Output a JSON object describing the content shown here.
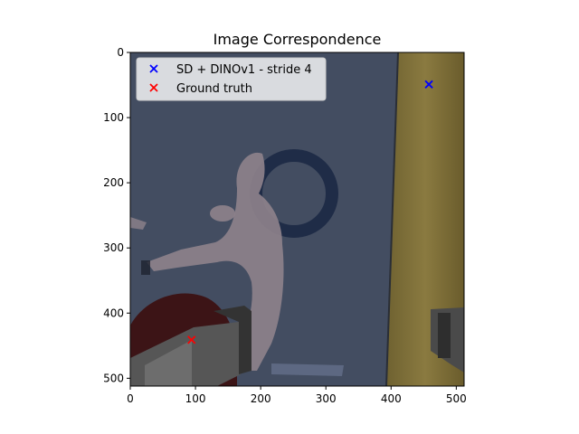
{
  "chart_data": {
    "type": "scatter",
    "title": "Image Correspondence",
    "xlabel": "",
    "ylabel": "",
    "xlim": [
      0,
      512
    ],
    "ylim": [
      512,
      0
    ],
    "xticks": [
      0,
      100,
      200,
      300,
      400,
      500
    ],
    "yticks": [
      0,
      100,
      200,
      300,
      400,
      500
    ],
    "grid": false,
    "legend_position": "top-left",
    "background": "image",
    "series": [
      {
        "name": "SD + DINOv1 - stride 4",
        "marker": "x",
        "color": "#0000ff",
        "points": [
          [
            458,
            49
          ]
        ]
      },
      {
        "name": "Ground truth",
        "marker": "x",
        "color": "#ff0000",
        "points": [
          [
            94,
            441
          ]
        ]
      }
    ]
  }
}
